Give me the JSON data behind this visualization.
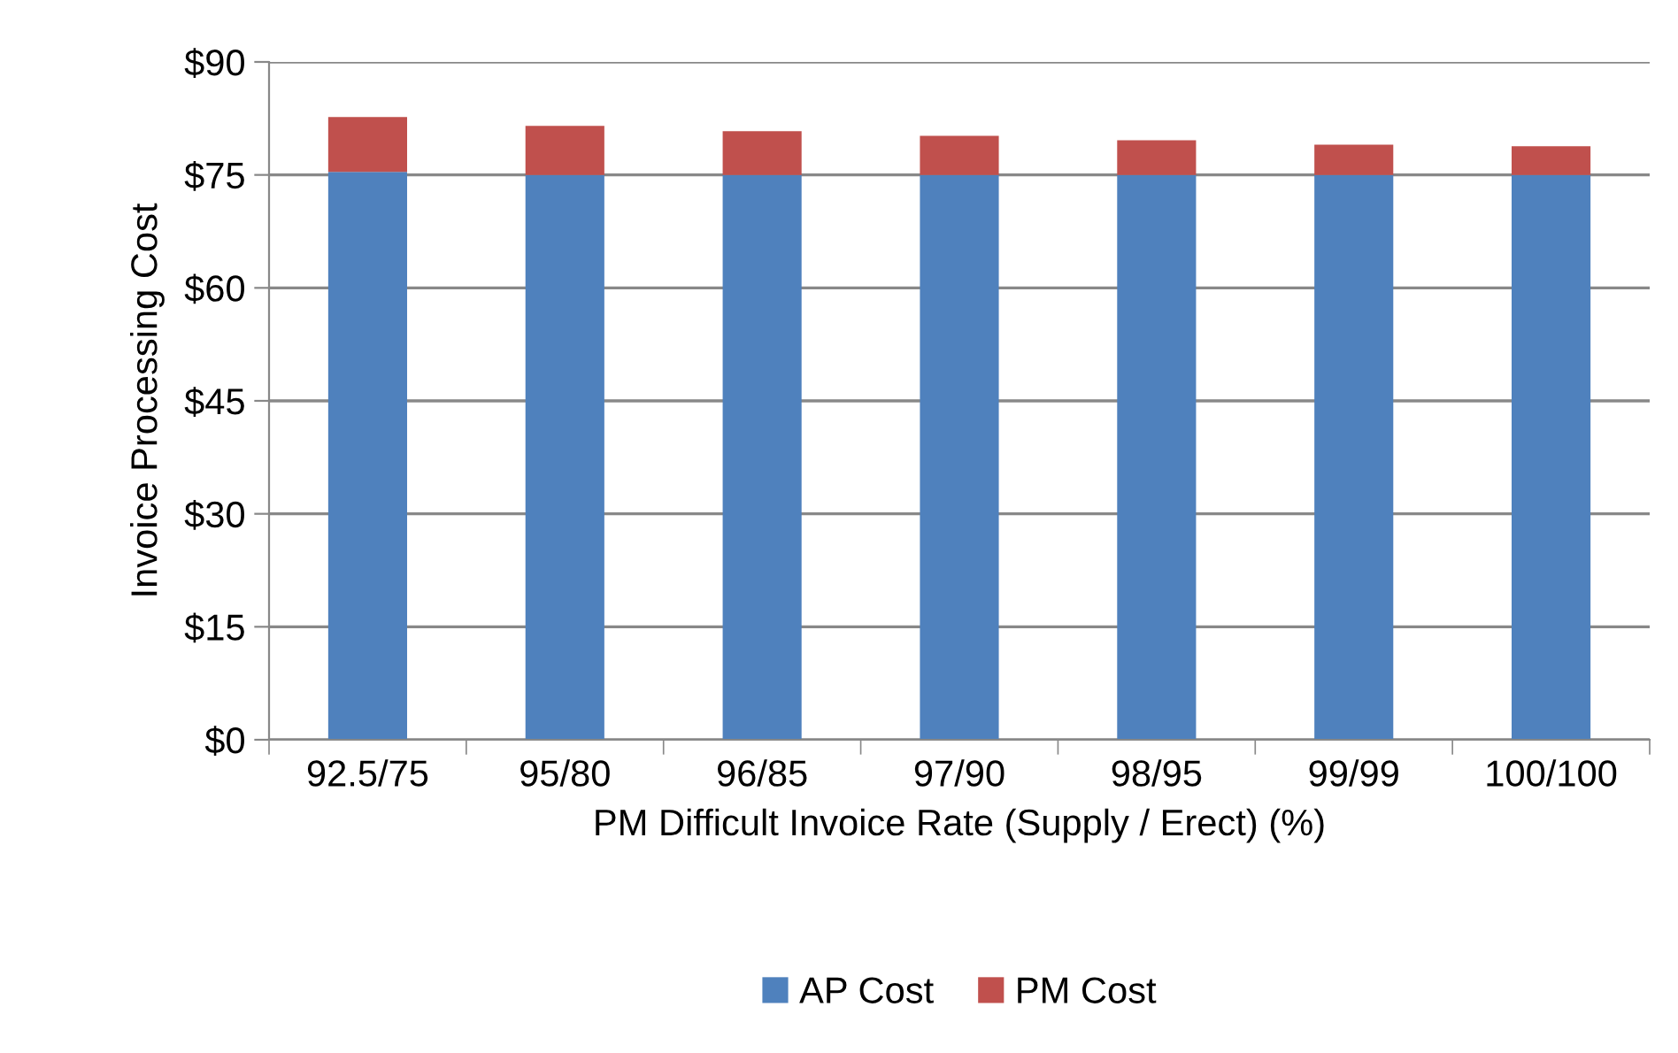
{
  "chart_data": {
    "type": "bar",
    "stacked": true,
    "xlabel": "PM Difficult Invoice Rate (Supply / Erect) (%)",
    "ylabel": "Invoice Processing Cost",
    "categories": [
      "92.5/75",
      "95/80",
      "96/85",
      "97/90",
      "98/95",
      "99/99",
      "100/100"
    ],
    "series": [
      {
        "name": "AP Cost",
        "color": "#4f81bd",
        "values": [
          75.4,
          75.0,
          75.0,
          75.0,
          75.0,
          75.0,
          75.0
        ]
      },
      {
        "name": "PM Cost",
        "color": "#c0504d",
        "values": [
          7.3,
          6.5,
          5.8,
          5.2,
          4.6,
          4.0,
          3.8
        ]
      }
    ],
    "ylim": [
      0,
      90
    ],
    "yticks": [
      {
        "value": 0,
        "label": "$0"
      },
      {
        "value": 15,
        "label": "$15"
      },
      {
        "value": 30,
        "label": "$30"
      },
      {
        "value": 45,
        "label": "$45"
      },
      {
        "value": 60,
        "label": "$60"
      },
      {
        "value": 75,
        "label": "$75"
      },
      {
        "value": 90,
        "label": "$90"
      }
    ],
    "grid": "y",
    "legend": "bottom"
  }
}
